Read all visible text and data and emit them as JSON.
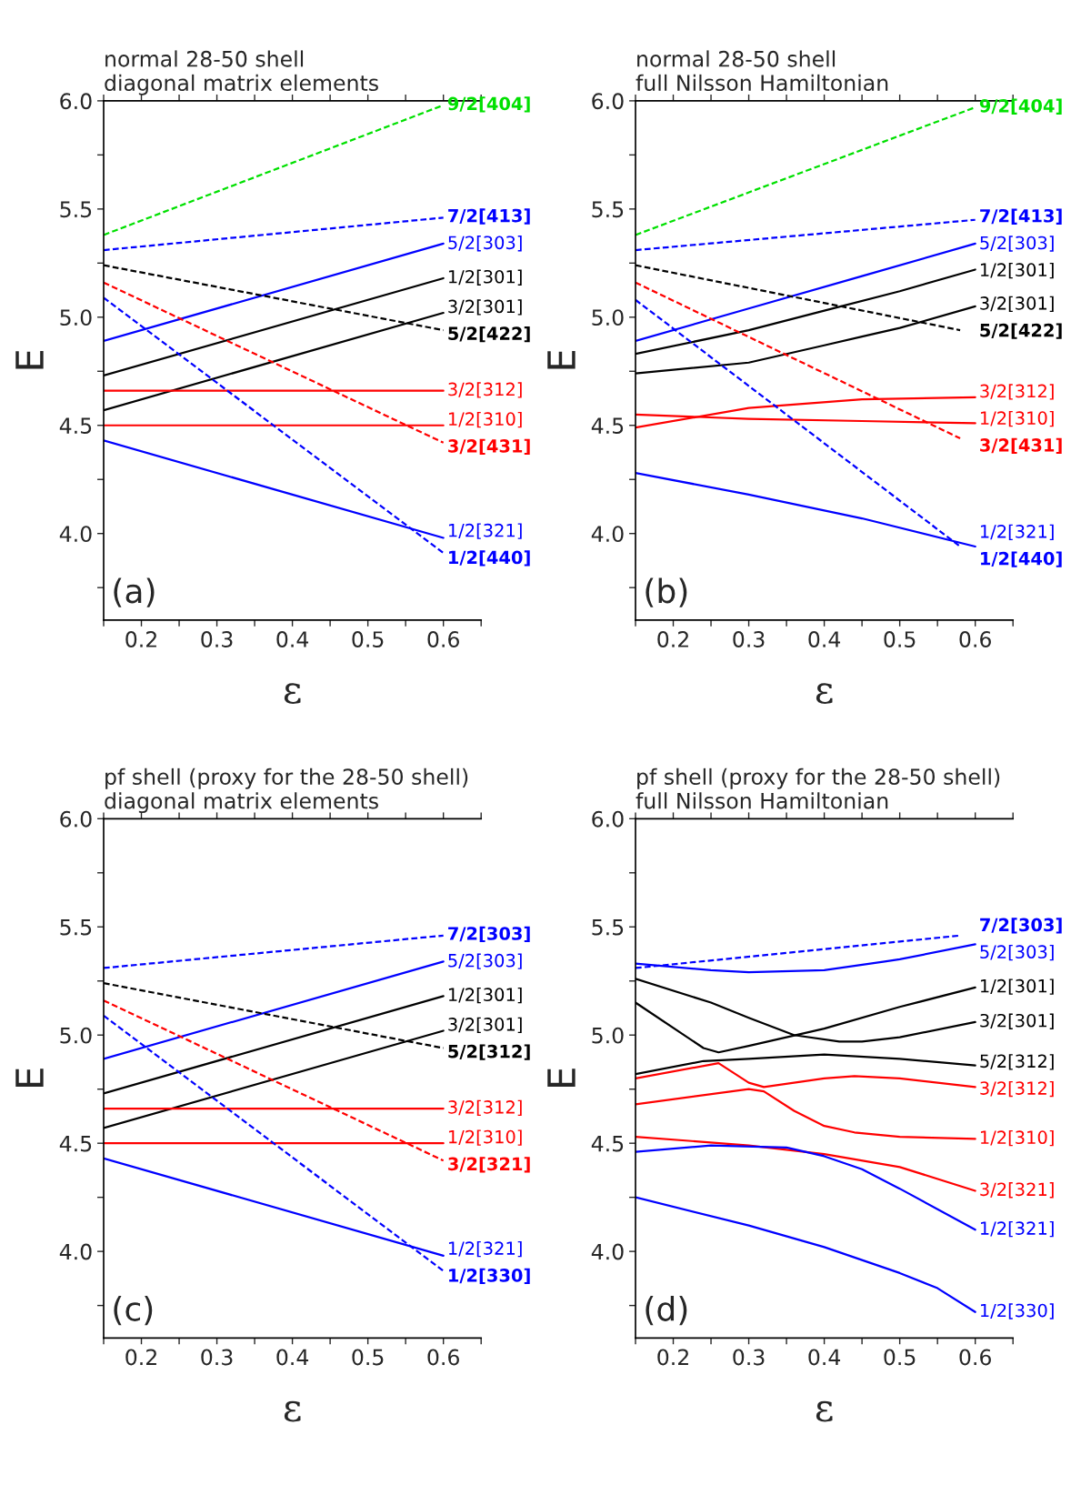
{
  "chart_data": [
    {
      "type": "line",
      "title": "normal 28-50 shell\ndiagonal matrix elements",
      "xlabel": "ε",
      "ylabel": "E",
      "annotations": [
        "(a)"
      ],
      "xlim": [
        0.15,
        0.65
      ],
      "ylim": [
        3.6,
        6.0
      ],
      "xticks": [
        {
          "value": 0.15,
          "label": null
        },
        0.2,
        {
          "value": 0.25,
          "label": null
        },
        0.3,
        {
          "value": 0.35,
          "label": null
        },
        0.4,
        {
          "value": 0.45,
          "label": null
        },
        0.5,
        {
          "value": 0.55,
          "label": null
        },
        0.6,
        {
          "value": 0.65,
          "label": null
        }
      ],
      "yticks": [
        {
          "value": 3.75,
          "label": null
        },
        {
          "value": 4.0,
          "label": "4.0"
        },
        {
          "value": 4.25,
          "label": null
        },
        {
          "value": 4.5,
          "label": "4.5"
        },
        {
          "value": 4.75,
          "label": null
        },
        {
          "value": 5.0,
          "label": "5.0"
        },
        {
          "value": 5.25,
          "label": null
        },
        {
          "value": 5.5,
          "label": "5.5"
        },
        {
          "value": 5.75,
          "label": null
        },
        {
          "value": 6.0,
          "label": "6.0"
        }
      ],
      "grid": false,
      "legend": false,
      "series": [
        {
          "name": "9/2[404]",
          "color": "#00e000",
          "line_style": "dashed",
          "x": [
            0.15,
            0.6
          ],
          "values": [
            5.38,
            5.98
          ]
        },
        {
          "name": "7/2[413]",
          "color": "#0000ff",
          "line_style": "dashed",
          "x": [
            0.15,
            0.6
          ],
          "values": [
            5.31,
            5.46
          ]
        },
        {
          "name": "5/2[303]",
          "color": "#0000ff",
          "line_style": "solid",
          "x": [
            0.15,
            0.6
          ],
          "values": [
            4.89,
            5.34
          ]
        },
        {
          "name": "1/2[301]",
          "color": "#000000",
          "line_style": "solid",
          "x": [
            0.15,
            0.6
          ],
          "values": [
            4.73,
            5.18
          ]
        },
        {
          "name": "3/2[301]",
          "color": "#000000",
          "line_style": "solid",
          "x": [
            0.15,
            0.6
          ],
          "values": [
            4.57,
            5.02
          ]
        },
        {
          "name": "5/2[422]",
          "color": "#000000",
          "line_style": "dashed",
          "x": [
            0.15,
            0.6
          ],
          "values": [
            5.24,
            4.94
          ]
        },
        {
          "name": "3/2[312]",
          "color": "#ff0000",
          "line_style": "solid",
          "x": [
            0.15,
            0.6
          ],
          "values": [
            4.66,
            4.66
          ]
        },
        {
          "name": "1/2[310]",
          "color": "#ff0000",
          "line_style": "solid",
          "x": [
            0.15,
            0.6
          ],
          "values": [
            4.5,
            4.5
          ]
        },
        {
          "name": "3/2[431]",
          "color": "#ff0000",
          "line_style": "dashed",
          "x": [
            0.15,
            0.6
          ],
          "values": [
            5.16,
            4.42
          ]
        },
        {
          "name": "1/2[321]",
          "color": "#0000ff",
          "line_style": "solid",
          "x": [
            0.15,
            0.6
          ],
          "values": [
            4.43,
            3.98
          ]
        },
        {
          "name": "1/2[440]",
          "color": "#0000ff",
          "line_style": "dashed",
          "x": [
            0.15,
            0.6
          ],
          "values": [
            5.09,
            3.91
          ]
        }
      ]
    },
    {
      "type": "line",
      "title": "normal 28-50 shell\nfull Nilsson Hamiltonian",
      "xlabel": "ε",
      "ylabel": "E",
      "annotations": [
        "(b)"
      ],
      "xlim": [
        0.15,
        0.65
      ],
      "ylim": [
        3.6,
        6.0
      ],
      "xticks": [
        {
          "value": 0.15,
          "label": null
        },
        0.2,
        {
          "value": 0.25,
          "label": null
        },
        0.3,
        {
          "value": 0.35,
          "label": null
        },
        0.4,
        {
          "value": 0.45,
          "label": null
        },
        0.5,
        {
          "value": 0.55,
          "label": null
        },
        0.6,
        {
          "value": 0.65,
          "label": null
        }
      ],
      "yticks": [
        {
          "value": 3.75,
          "label": null
        },
        {
          "value": 4.0,
          "label": "4.0"
        },
        {
          "value": 4.25,
          "label": null
        },
        {
          "value": 4.5,
          "label": "4.5"
        },
        {
          "value": 4.75,
          "label": null
        },
        {
          "value": 5.0,
          "label": "5.0"
        },
        {
          "value": 5.25,
          "label": null
        },
        {
          "value": 5.5,
          "label": "5.5"
        },
        {
          "value": 5.75,
          "label": null
        },
        {
          "value": 6.0,
          "label": "6.0"
        }
      ],
      "grid": false,
      "legend": false,
      "series": [
        {
          "name": "9/2[404]",
          "color": "#00e000",
          "line_style": "dashed",
          "x": [
            0.15,
            0.6
          ],
          "values": [
            5.38,
            5.97
          ]
        },
        {
          "name": "7/2[413]",
          "color": "#0000ff",
          "line_style": "dashed",
          "x": [
            0.15,
            0.6
          ],
          "values": [
            5.31,
            5.45
          ]
        },
        {
          "name": "5/2[303]",
          "color": "#0000ff",
          "line_style": "solid",
          "x": [
            0.15,
            0.3,
            0.45,
            0.6
          ],
          "values": [
            4.89,
            5.04,
            5.19,
            5.34
          ]
        },
        {
          "name": "1/2[301]",
          "color": "#000000",
          "line_style": "solid",
          "x": [
            0.15,
            0.3,
            0.4,
            0.5,
            0.6
          ],
          "values": [
            4.83,
            4.94,
            5.03,
            5.12,
            5.22
          ]
        },
        {
          "name": "3/2[301]",
          "color": "#000000",
          "line_style": "solid",
          "x": [
            0.15,
            0.3,
            0.4,
            0.45,
            0.5,
            0.6
          ],
          "values": [
            4.74,
            4.79,
            4.87,
            4.91,
            4.95,
            5.05
          ]
        },
        {
          "name": "5/2[422]",
          "color": "#000000",
          "line_style": "dashed",
          "x": [
            0.15,
            0.58
          ],
          "values": [
            5.24,
            4.94
          ]
        },
        {
          "name": "3/2[312]",
          "color": "#ff0000",
          "line_style": "solid",
          "x": [
            0.15,
            0.3,
            0.45,
            0.6
          ],
          "values": [
            4.49,
            4.58,
            4.62,
            4.63
          ]
        },
        {
          "name": "1/2[310]",
          "color": "#ff0000",
          "line_style": "solid",
          "x": [
            0.15,
            0.3,
            0.45,
            0.6
          ],
          "values": [
            4.55,
            4.53,
            4.52,
            4.51
          ]
        },
        {
          "name": "3/2[431]",
          "color": "#ff0000",
          "line_style": "dashed",
          "x": [
            0.15,
            0.58
          ],
          "values": [
            5.16,
            4.44
          ]
        },
        {
          "name": "1/2[321]",
          "color": "#0000ff",
          "line_style": "solid",
          "x": [
            0.15,
            0.3,
            0.45,
            0.6
          ],
          "values": [
            4.28,
            4.18,
            4.07,
            3.94
          ]
        },
        {
          "name": "1/2[440]",
          "color": "#0000ff",
          "line_style": "dashed",
          "x": [
            0.15,
            0.58
          ],
          "values": [
            5.08,
            3.94
          ]
        }
      ]
    },
    {
      "type": "line",
      "title": "pf shell (proxy for the 28-50 shell)\ndiagonal matrix elements",
      "xlabel": "ε",
      "ylabel": "E",
      "annotations": [
        "(c)"
      ],
      "xlim": [
        0.15,
        0.65
      ],
      "ylim": [
        3.6,
        6.0
      ],
      "xticks": [
        {
          "value": 0.15,
          "label": null
        },
        0.2,
        {
          "value": 0.25,
          "label": null
        },
        0.3,
        {
          "value": 0.35,
          "label": null
        },
        0.4,
        {
          "value": 0.45,
          "label": null
        },
        0.5,
        {
          "value": 0.55,
          "label": null
        },
        0.6,
        {
          "value": 0.65,
          "label": null
        }
      ],
      "yticks": [
        {
          "value": 3.75,
          "label": null
        },
        {
          "value": 4.0,
          "label": "4.0"
        },
        {
          "value": 4.25,
          "label": null
        },
        {
          "value": 4.5,
          "label": "4.5"
        },
        {
          "value": 4.75,
          "label": null
        },
        {
          "value": 5.0,
          "label": "5.0"
        },
        {
          "value": 5.25,
          "label": null
        },
        {
          "value": 5.5,
          "label": "5.5"
        },
        {
          "value": 5.75,
          "label": null
        },
        {
          "value": 6.0,
          "label": "6.0"
        }
      ],
      "grid": false,
      "legend": false,
      "series": [
        {
          "name": "7/2[303]",
          "color": "#0000ff",
          "line_style": "dashed",
          "x": [
            0.15,
            0.6
          ],
          "values": [
            5.31,
            5.46
          ]
        },
        {
          "name": "5/2[303]",
          "color": "#0000ff",
          "line_style": "solid",
          "x": [
            0.15,
            0.6
          ],
          "values": [
            4.89,
            5.34
          ]
        },
        {
          "name": "1/2[301]",
          "color": "#000000",
          "line_style": "solid",
          "x": [
            0.15,
            0.6
          ],
          "values": [
            4.73,
            5.18
          ]
        },
        {
          "name": "3/2[301]",
          "color": "#000000",
          "line_style": "solid",
          "x": [
            0.15,
            0.6
          ],
          "values": [
            4.57,
            5.02
          ]
        },
        {
          "name": "5/2[312]",
          "color": "#000000",
          "line_style": "dashed",
          "x": [
            0.15,
            0.6
          ],
          "values": [
            5.24,
            4.94
          ]
        },
        {
          "name": "3/2[312]",
          "color": "#ff0000",
          "line_style": "solid",
          "x": [
            0.15,
            0.6
          ],
          "values": [
            4.66,
            4.66
          ]
        },
        {
          "name": "1/2[310]",
          "color": "#ff0000",
          "line_style": "solid",
          "x": [
            0.15,
            0.6
          ],
          "values": [
            4.5,
            4.5
          ]
        },
        {
          "name": "3/2[321]",
          "color": "#ff0000",
          "line_style": "dashed",
          "x": [
            0.15,
            0.6
          ],
          "values": [
            5.16,
            4.42
          ]
        },
        {
          "name": "1/2[321]",
          "color": "#0000ff",
          "line_style": "solid",
          "x": [
            0.15,
            0.6
          ],
          "values": [
            4.43,
            3.98
          ]
        },
        {
          "name": "1/2[330]",
          "color": "#0000ff",
          "line_style": "dashed",
          "x": [
            0.15,
            0.6
          ],
          "values": [
            5.09,
            3.91
          ]
        }
      ]
    },
    {
      "type": "line",
      "title": "pf shell (proxy for the 28-50 shell)\nfull Nilsson Hamiltonian",
      "xlabel": "ε",
      "ylabel": "E",
      "annotations": [
        "(d)"
      ],
      "xlim": [
        0.15,
        0.65
      ],
      "ylim": [
        3.6,
        6.0
      ],
      "xticks": [
        {
          "value": 0.15,
          "label": null
        },
        0.2,
        {
          "value": 0.25,
          "label": null
        },
        0.3,
        {
          "value": 0.35,
          "label": null
        },
        0.4,
        {
          "value": 0.45,
          "label": null
        },
        0.5,
        {
          "value": 0.55,
          "label": null
        },
        0.6,
        {
          "value": 0.65,
          "label": null
        }
      ],
      "yticks": [
        {
          "value": 3.75,
          "label": null
        },
        {
          "value": 4.0,
          "label": "4.0"
        },
        {
          "value": 4.25,
          "label": null
        },
        {
          "value": 4.5,
          "label": "4.5"
        },
        {
          "value": 4.75,
          "label": null
        },
        {
          "value": 5.0,
          "label": "5.0"
        },
        {
          "value": 5.25,
          "label": null
        },
        {
          "value": 5.5,
          "label": "5.5"
        },
        {
          "value": 5.75,
          "label": null
        },
        {
          "value": 6.0,
          "label": "6.0"
        }
      ],
      "grid": false,
      "legend": false,
      "series": [
        {
          "name": "7/2[303]",
          "color": "#0000ff",
          "line_style": "dashed",
          "x": [
            0.15,
            0.58
          ],
          "values": [
            5.31,
            5.46
          ]
        },
        {
          "name": "5/2[303]",
          "color": "#0000ff",
          "line_style": "solid",
          "x": [
            0.15,
            0.25,
            0.3,
            0.4,
            0.48,
            0.5,
            0.6
          ],
          "values": [
            5.33,
            5.3,
            5.29,
            5.3,
            5.34,
            5.35,
            5.42
          ]
        },
        {
          "name": "1/2[301]",
          "color": "#000000",
          "line_style": "solid",
          "x": [
            0.15,
            0.24,
            0.26,
            0.3,
            0.4,
            0.5,
            0.6
          ],
          "values": [
            5.15,
            4.94,
            4.92,
            4.95,
            5.03,
            5.13,
            5.22
          ]
        },
        {
          "name": "3/2[301]",
          "color": "#000000",
          "line_style": "solid",
          "x": [
            0.15,
            0.25,
            0.3,
            0.36,
            0.42,
            0.45,
            0.5,
            0.6
          ],
          "values": [
            5.26,
            5.15,
            5.08,
            5.0,
            4.97,
            4.97,
            4.99,
            5.06
          ]
        },
        {
          "name": "5/2[312]",
          "color": "#000000",
          "line_style": "solid",
          "x": [
            0.15,
            0.24,
            0.3,
            0.4,
            0.5,
            0.6
          ],
          "values": [
            4.82,
            4.88,
            4.89,
            4.91,
            4.89,
            4.86
          ]
        },
        {
          "name": "3/2[312]",
          "color": "#ff0000",
          "line_style": "solid",
          "x": [
            0.15,
            0.26,
            0.3,
            0.32,
            0.4,
            0.44,
            0.5,
            0.6
          ],
          "values": [
            4.8,
            4.87,
            4.78,
            4.76,
            4.8,
            4.81,
            4.8,
            4.76
          ]
        },
        {
          "name": "1/2[310]",
          "color": "#ff0000",
          "line_style": "solid",
          "x": [
            0.15,
            0.3,
            0.32,
            0.36,
            0.4,
            0.44,
            0.5,
            0.6
          ],
          "values": [
            4.68,
            4.75,
            4.74,
            4.65,
            4.58,
            4.55,
            4.53,
            4.52
          ]
        },
        {
          "name": "3/2[321]",
          "color": "#ff0000",
          "line_style": "solid",
          "x": [
            0.15,
            0.3,
            0.4,
            0.5,
            0.6
          ],
          "values": [
            4.53,
            4.49,
            4.45,
            4.39,
            4.28
          ]
        },
        {
          "name": "1/2[321]",
          "color": "#0000ff",
          "line_style": "solid",
          "x": [
            0.15,
            0.25,
            0.35,
            0.4,
            0.45,
            0.5,
            0.6
          ],
          "values": [
            4.46,
            4.49,
            4.48,
            4.44,
            4.38,
            4.29,
            4.1
          ]
        },
        {
          "name": "1/2[330]",
          "color": "#0000ff",
          "line_style": "solid",
          "x": [
            0.15,
            0.3,
            0.4,
            0.5,
            0.55,
            0.6
          ],
          "values": [
            4.25,
            4.12,
            4.02,
            3.9,
            3.83,
            3.72
          ]
        }
      ]
    }
  ]
}
